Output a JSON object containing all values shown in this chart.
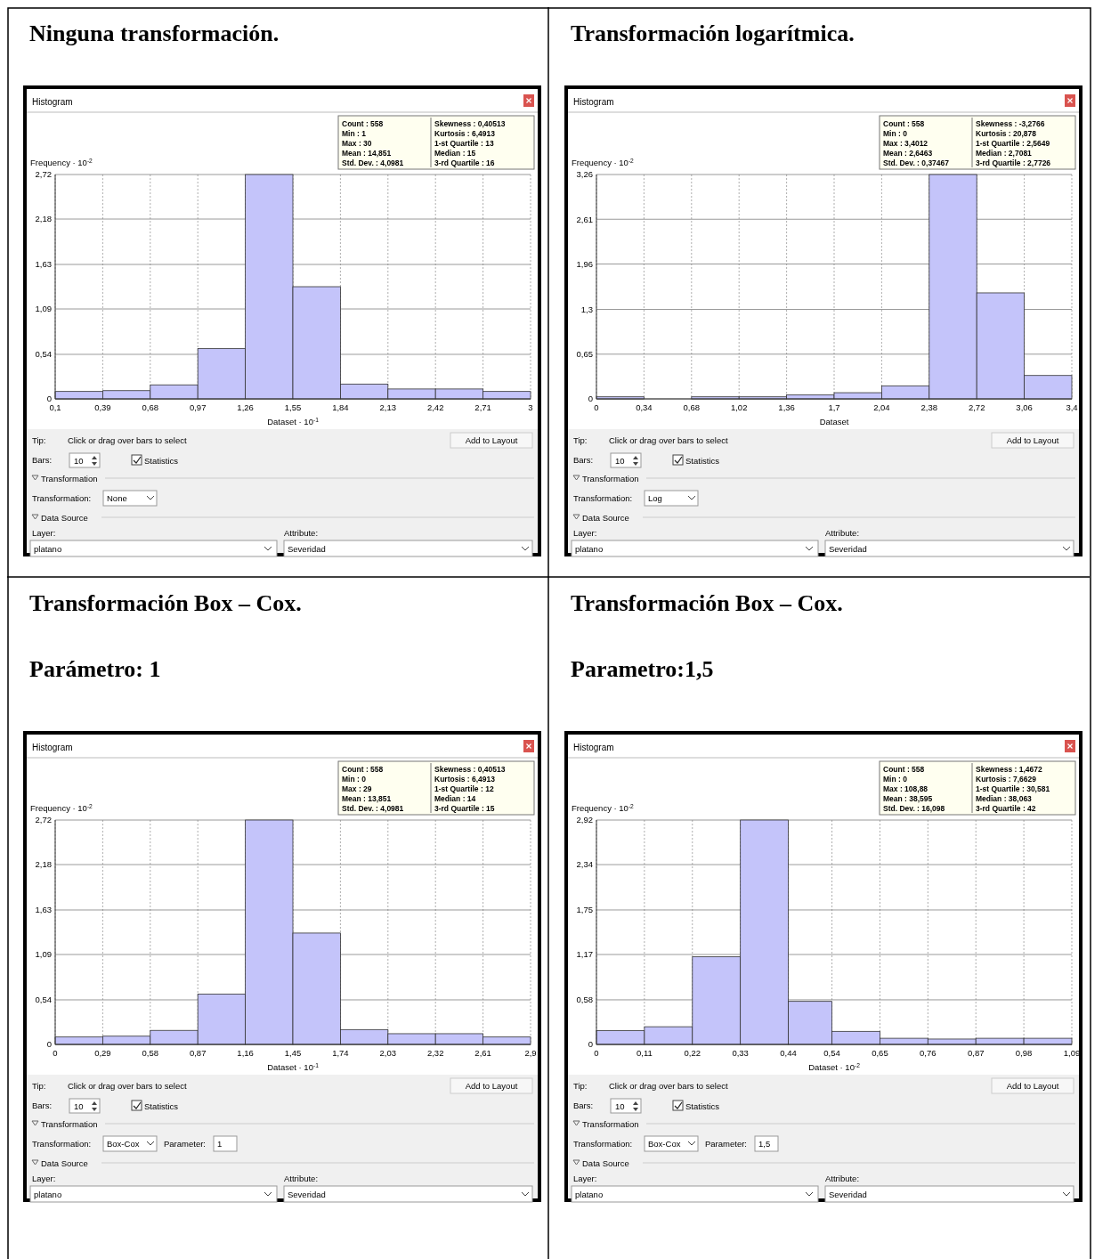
{
  "chart_data": [
    {
      "type": "histogram",
      "title": "Ninguna transformación.",
      "ylabel": "Frequency · 10$^{-2}$",
      "xlabel": "Dataset · 10$^{-1}$",
      "color": "#c4c4fa",
      "grid": true,
      "bins": [
        0.1,
        0.39,
        0.68,
        0.97,
        1.26,
        1.55,
        1.84,
        2.13,
        2.42,
        2.71,
        3
      ],
      "values": [
        0.09,
        0.1,
        0.17,
        0.61,
        2.72,
        1.36,
        0.18,
        0.12,
        0.12,
        0.09
      ],
      "xlim": [
        0.1,
        3
      ],
      "ylim": [
        0,
        2.72
      ],
      "xticks": [
        {
          "value": 0.1,
          "label": "0,1"
        },
        {
          "value": 0.39,
          "label": "0,39"
        },
        {
          "value": 0.68,
          "label": "0,68"
        },
        {
          "value": 0.97,
          "label": "0,97"
        },
        {
          "value": 1.26,
          "label": "1,26"
        },
        {
          "value": 1.55,
          "label": "1,55"
        },
        {
          "value": 1.84,
          "label": "1,84"
        },
        {
          "value": 2.13,
          "label": "2,13"
        },
        {
          "value": 2.42,
          "label": "2,42"
        },
        {
          "value": 2.71,
          "label": "2,71"
        },
        {
          "value": 3,
          "label": "3"
        }
      ],
      "yticks": [
        {
          "value": 0,
          "label": "0"
        },
        {
          "value": 0.54,
          "label": "0,54"
        },
        {
          "value": 1.09,
          "label": "1,09"
        },
        {
          "value": 1.63,
          "label": "1,63"
        },
        {
          "value": 2.18,
          "label": "2,18"
        },
        {
          "value": 2.72,
          "label": "2,72"
        }
      ],
      "annotations": [
        "Histogram",
        "Count : 558",
        "Min : 1",
        "Max : 30",
        "Mean : 14,851",
        "Std. Dev. : 4,0981",
        "Skewness : 0,40513",
        "Kurtosis : 6,4913",
        "1-st Quartile : 13",
        "Median : 15",
        "3-rd Quartile : 16",
        "Tip:",
        "Click or drag over bars to select",
        "Add to Layout",
        "Bars:",
        "10",
        "Statistics",
        "Transformation",
        "Transformation:",
        "None",
        "Data Source",
        "Layer:",
        "platano",
        "Attribute:",
        "Severidad"
      ]
    },
    {
      "type": "histogram",
      "title": "Transformación logarítmica.",
      "ylabel": "Frequency · 10$^{-2}$",
      "xlabel": "Dataset",
      "color": "#c4c4fa",
      "grid": true,
      "bins": [
        0,
        0.34,
        0.68,
        1.02,
        1.36,
        1.7,
        2.04,
        2.38,
        2.72,
        3.06,
        3.4
      ],
      "values": [
        0.03,
        0,
        0.03,
        0.03,
        0.06,
        0.09,
        0.19,
        3.26,
        1.54,
        0.34
      ],
      "xlim": [
        0,
        3.4
      ],
      "ylim": [
        0,
        3.26
      ],
      "xticks": [
        {
          "value": 0,
          "label": "0"
        },
        {
          "value": 0.34,
          "label": "0,34"
        },
        {
          "value": 0.68,
          "label": "0,68"
        },
        {
          "value": 1.02,
          "label": "1,02"
        },
        {
          "value": 1.36,
          "label": "1,36"
        },
        {
          "value": 1.7,
          "label": "1,7"
        },
        {
          "value": 2.04,
          "label": "2,04"
        },
        {
          "value": 2.38,
          "label": "2,38"
        },
        {
          "value": 2.72,
          "label": "2,72"
        },
        {
          "value": 3.06,
          "label": "3,06"
        },
        {
          "value": 3.4,
          "label": "3,4"
        }
      ],
      "yticks": [
        {
          "value": 0,
          "label": "0"
        },
        {
          "value": 0.65,
          "label": "0,65"
        },
        {
          "value": 1.3,
          "label": "1,3"
        },
        {
          "value": 1.96,
          "label": "1,96"
        },
        {
          "value": 2.61,
          "label": "2,61"
        },
        {
          "value": 3.26,
          "label": "3,26"
        }
      ],
      "annotations": [
        "Histogram",
        "Count : 558",
        "Min : 0",
        "Max : 3,4012",
        "Mean : 2,6463",
        "Std. Dev. : 0,37467",
        "Skewness : -3,2766",
        "Kurtosis : 20,878",
        "1-st Quartile : 2,5649",
        "Median : 2,7081",
        "3-rd Quartile : 2,7726",
        "Tip:",
        "Click or drag over bars to select",
        "Add to Layout",
        "Bars:",
        "10",
        "Statistics",
        "Transformation",
        "Transformation:",
        "Log",
        "Data Source",
        "Layer:",
        "platano",
        "Attribute:",
        "Severidad"
      ]
    },
    {
      "type": "histogram",
      "title": "Transformación Box – Cox.",
      "subtitle": "Parámetro: 1",
      "ylabel": "Frequency · 10$^{-2}$",
      "xlabel": "Dataset · 10$^{-1}$",
      "color": "#c4c4fa",
      "grid": true,
      "bins": [
        0,
        0.29,
        0.58,
        0.87,
        1.16,
        1.45,
        1.74,
        2.03,
        2.32,
        2.61,
        2.9
      ],
      "values": [
        0.09,
        0.1,
        0.17,
        0.61,
        2.72,
        1.35,
        0.18,
        0.13,
        0.13,
        0.09
      ],
      "xlim": [
        0,
        2.9
      ],
      "ylim": [
        0,
        2.72
      ],
      "xticks": [
        {
          "value": 0,
          "label": "0"
        },
        {
          "value": 0.29,
          "label": "0,29"
        },
        {
          "value": 0.58,
          "label": "0,58"
        },
        {
          "value": 0.87,
          "label": "0,87"
        },
        {
          "value": 1.16,
          "label": "1,16"
        },
        {
          "value": 1.45,
          "label": "1,45"
        },
        {
          "value": 1.74,
          "label": "1,74"
        },
        {
          "value": 2.03,
          "label": "2,03"
        },
        {
          "value": 2.32,
          "label": "2,32"
        },
        {
          "value": 2.61,
          "label": "2,61"
        },
        {
          "value": 2.9,
          "label": "2,9"
        }
      ],
      "yticks": [
        {
          "value": 0,
          "label": "0"
        },
        {
          "value": 0.54,
          "label": "0,54"
        },
        {
          "value": 1.09,
          "label": "1,09"
        },
        {
          "value": 1.63,
          "label": "1,63"
        },
        {
          "value": 2.18,
          "label": "2,18"
        },
        {
          "value": 2.72,
          "label": "2,72"
        }
      ],
      "annotations": [
        "Histogram",
        "Count : 558",
        "Min : 0",
        "Max : 29",
        "Mean : 13,851",
        "Std. Dev. : 4,0981",
        "Skewness : 0,40513",
        "Kurtosis : 6,4913",
        "1-st Quartile : 12",
        "Median : 14",
        "3-rd Quartile : 15",
        "Tip:",
        "Click or drag over bars to select",
        "Add to Layout",
        "Bars:",
        "10",
        "Statistics",
        "Transformation",
        "Transformation:",
        "Box-Cox",
        "Parameter:",
        "1",
        "Data Source",
        "Layer:",
        "platano",
        "Attribute:",
        "Severidad"
      ]
    },
    {
      "type": "histogram",
      "title": "Transformación Box – Cox.",
      "subtitle": "Parametro:1,5",
      "ylabel": "Frequency · 10$^{-2}$",
      "xlabel": "Dataset · 10$^{-2}$",
      "color": "#c4c4fa",
      "grid": true,
      "bins": [
        0,
        0.11,
        0.22,
        0.33,
        0.44,
        0.54,
        0.65,
        0.76,
        0.87,
        0.98,
        1.09
      ],
      "values": [
        0.18,
        0.23,
        1.14,
        2.92,
        0.56,
        0.17,
        0.08,
        0.07,
        0.08,
        0.08
      ],
      "xlim": [
        0,
        1.09
      ],
      "ylim": [
        0,
        2.92
      ],
      "xticks": [
        {
          "value": 0,
          "label": "0"
        },
        {
          "value": 0.11,
          "label": "0,11"
        },
        {
          "value": 0.22,
          "label": "0,22"
        },
        {
          "value": 0.33,
          "label": "0,33"
        },
        {
          "value": 0.44,
          "label": "0,44"
        },
        {
          "value": 0.54,
          "label": "0,54"
        },
        {
          "value": 0.65,
          "label": "0,65"
        },
        {
          "value": 0.76,
          "label": "0,76"
        },
        {
          "value": 0.87,
          "label": "0,87"
        },
        {
          "value": 0.98,
          "label": "0,98"
        },
        {
          "value": 1.09,
          "label": "1,09"
        }
      ],
      "yticks": [
        {
          "value": 0,
          "label": "0"
        },
        {
          "value": 0.58,
          "label": "0,58"
        },
        {
          "value": 1.17,
          "label": "1,17"
        },
        {
          "value": 1.75,
          "label": "1,75"
        },
        {
          "value": 2.34,
          "label": "2,34"
        },
        {
          "value": 2.92,
          "label": "2,92"
        }
      ],
      "annotations": [
        "Histogram",
        "Count : 558",
        "Min : 0",
        "Max : 108,88",
        "Mean : 38,595",
        "Std. Dev. : 16,098",
        "Skewness : 1,4672",
        "Kurtosis : 7,6629",
        "1-st Quartile : 30,581",
        "Median : 38,063",
        "3-rd Quartile : 42",
        "Tip:",
        "Click or drag over bars to select",
        "Add to Layout",
        "Bars:",
        "10",
        "Statistics",
        "Transformation",
        "Transformation:",
        "Box-Cox",
        "Parameter:",
        "1,5",
        "Data Source",
        "Layer:",
        "platano",
        "Attribute:",
        "Severidad"
      ]
    }
  ]
}
